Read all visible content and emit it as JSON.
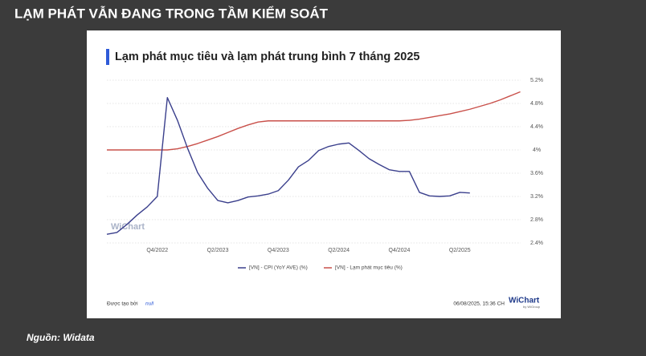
{
  "header": "LẠM PHÁT VẪN ĐANG TRONG TẦM KIỂM SOÁT",
  "source": "Nguồn: Widata",
  "footer": {
    "created_by": "Được tạo bởi",
    "creator": "null",
    "timestamp": "06/08/2025, 15:36 CH",
    "logo": "WiChart",
    "logo_sub": "by WiGroup",
    "watermark": "WiChart"
  },
  "chart_data": {
    "type": "line",
    "title": "Lạm phát mục tiêu và lạm phát trung bình 7 tháng 2025",
    "categories": [
      null,
      null,
      null,
      null,
      null,
      "Q4/2022",
      null,
      null,
      null,
      null,
      null,
      "Q2/2023",
      null,
      null,
      null,
      null,
      null,
      "Q4/2023",
      null,
      null,
      null,
      null,
      null,
      "Q2/2024",
      null,
      null,
      null,
      null,
      null,
      "Q4/2024",
      null,
      null,
      null,
      null,
      null,
      "Q2/2025",
      null,
      null,
      null,
      null,
      null,
      null
    ],
    "series": [
      {
        "name": "[VN] - CPI (YoY AVE) (%)",
        "color": "#3a3f8c",
        "values": [
          2.55,
          2.58,
          2.72,
          2.88,
          3.02,
          3.2,
          4.9,
          4.51,
          4.03,
          3.61,
          3.34,
          3.13,
          3.09,
          3.13,
          3.19,
          3.21,
          3.24,
          3.3,
          3.48,
          3.71,
          3.82,
          3.99,
          4.06,
          4.1,
          4.12,
          3.99,
          3.85,
          3.75,
          3.66,
          3.63,
          3.63,
          3.27,
          3.21,
          3.2,
          3.21,
          3.27,
          3.26,
          null,
          null,
          null,
          null,
          null
        ]
      },
      {
        "name": "[VN] - Lạm phát mục tiêu (%)",
        "color": "#c9504a",
        "values": [
          4.0,
          4.0,
          4.0,
          4.0,
          4.0,
          4.0,
          4.0,
          4.02,
          4.06,
          4.11,
          4.17,
          4.23,
          4.3,
          4.37,
          4.43,
          4.48,
          4.5,
          4.5,
          4.5,
          4.5,
          4.5,
          4.5,
          4.5,
          4.5,
          4.5,
          4.5,
          4.5,
          4.5,
          4.5,
          4.5,
          4.51,
          4.53,
          4.56,
          4.59,
          4.62,
          4.66,
          4.7,
          4.75,
          4.8,
          4.86,
          4.93,
          5.0
        ]
      }
    ],
    "ylim": [
      2.4,
      5.2
    ],
    "yticks": [
      {
        "value": 2.4,
        "label": "2.4%"
      },
      {
        "value": 2.8,
        "label": "2.8%"
      },
      {
        "value": 3.2,
        "label": "3.2%"
      },
      {
        "value": 3.6,
        "label": "3.6%"
      },
      {
        "value": 4,
        "label": "4%"
      },
      {
        "value": 4.4,
        "label": "4.4%"
      },
      {
        "value": 4.8,
        "label": "4.8%"
      },
      {
        "value": 5.2,
        "label": "5.2%"
      }
    ],
    "grid": true,
    "legend": "bottom"
  }
}
